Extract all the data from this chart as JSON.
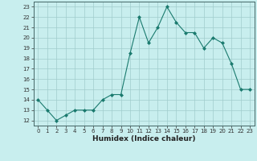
{
  "x": [
    0,
    1,
    2,
    3,
    4,
    5,
    6,
    7,
    8,
    9,
    10,
    11,
    12,
    13,
    14,
    15,
    16,
    17,
    18,
    19,
    20,
    21,
    22,
    23
  ],
  "y": [
    14,
    13,
    12,
    12.5,
    13,
    13,
    13,
    14,
    14.5,
    14.5,
    18.5,
    22,
    19.5,
    21,
    23,
    21.5,
    20.5,
    20.5,
    19,
    20,
    19.5,
    17.5,
    15,
    15
  ],
  "line_color": "#1a7a6e",
  "marker": "D",
  "marker_size": 2,
  "bg_color": "#c8eeee",
  "grid_color": "#a0cccc",
  "xlabel": "Humidex (Indice chaleur)",
  "xlim": [
    -0.5,
    23.5
  ],
  "ylim": [
    11.5,
    23.5
  ],
  "yticks": [
    12,
    13,
    14,
    15,
    16,
    17,
    18,
    19,
    20,
    21,
    22,
    23
  ],
  "xticks": [
    0,
    1,
    2,
    3,
    4,
    5,
    6,
    7,
    8,
    9,
    10,
    11,
    12,
    13,
    14,
    15,
    16,
    17,
    18,
    19,
    20,
    21,
    22,
    23
  ]
}
